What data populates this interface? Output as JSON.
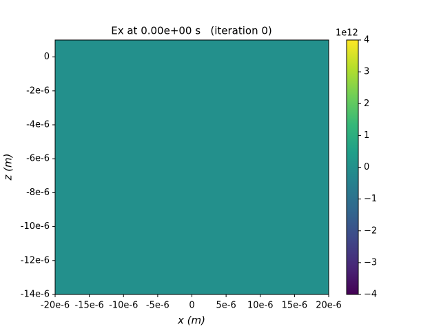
{
  "chart_data": {
    "type": "heatmap",
    "title": "Ex at 0.00e+00 s   (iteration 0)",
    "xlabel": "x (m)",
    "ylabel": "z (m)",
    "values": [
      [
        0
      ]
    ],
    "xlim": [
      -2e-05,
      2e-05
    ],
    "xticks": [
      {
        "value": -2e-05,
        "label": "-20e-6"
      },
      {
        "value": -1.5e-05,
        "label": "-15e-6"
      },
      {
        "value": -1e-05,
        "label": "-10e-6"
      },
      {
        "value": -5e-06,
        "label": "-5e-6"
      },
      0,
      {
        "value": 5e-06,
        "label": "5e-6"
      },
      {
        "value": 1e-05,
        "label": "10e-6"
      },
      {
        "value": 1.5e-05,
        "label": "15e-6"
      },
      {
        "value": 2e-05,
        "label": "20e-6"
      }
    ],
    "ylim": [
      -1.4e-05,
      1e-06
    ],
    "yticks": [
      0,
      {
        "value": -2e-06,
        "label": "-2e-6"
      },
      {
        "value": -4e-06,
        "label": "-4e-6"
      },
      {
        "value": -6e-06,
        "label": "-6e-6"
      },
      {
        "value": -8e-06,
        "label": "-8e-6"
      },
      {
        "value": -1e-05,
        "label": "-10e-6"
      },
      {
        "value": -1.2e-05,
        "label": "-12e-6"
      },
      {
        "value": -1.4e-05,
        "label": "-14e-6"
      }
    ],
    "zlim": [
      -4,
      4
    ],
    "zticks": [
      {
        "value": -4,
        "label": "−4"
      },
      {
        "value": -3,
        "label": "−3"
      },
      {
        "value": -2,
        "label": "−2"
      },
      {
        "value": -1,
        "label": "−1"
      },
      0,
      1,
      2,
      3,
      4
    ],
    "zoffset_label": "1e12",
    "colormap": [
      "#440154",
      "#482878",
      "#3e4989",
      "#31688e",
      "#26828e",
      "#1f9e89",
      "#35b779",
      "#6ece58",
      "#b5de2b",
      "#fde725"
    ]
  }
}
